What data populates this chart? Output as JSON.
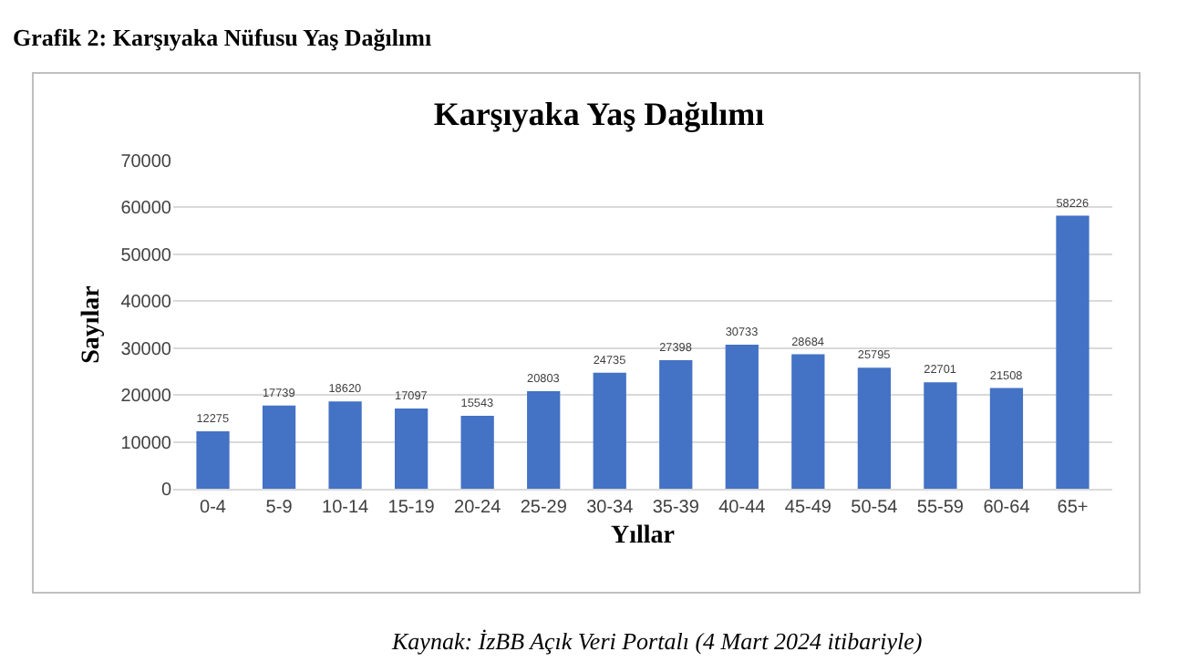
{
  "chart_data": {
    "type": "bar",
    "title": "Karşıyaka Yaş Dağılımı",
    "xlabel": "Yıllar",
    "ylabel": "Sayılar",
    "annotations": [
      "Grafik 2: Karşıyaka Nüfusu Yaş Dağılımı",
      "Kaynak: İzBB Açık Veri Portalı (4 Mart 2024 itibariyle)"
    ],
    "categories": [
      "0-4",
      "5-9",
      "10-14",
      "15-19",
      "20-24",
      "25-29",
      "30-34",
      "35-39",
      "40-44",
      "45-49",
      "50-54",
      "55-59",
      "60-64",
      "65+"
    ],
    "values": [
      12275,
      17739,
      18620,
      17097,
      15543,
      20803,
      24735,
      27398,
      30733,
      28684,
      25795,
      22701,
      21508,
      58226
    ],
    "color": "#4472c4",
    "ylim": [
      0,
      70000
    ],
    "yticks": [
      0,
      10000,
      20000,
      30000,
      40000,
      50000,
      60000,
      70000
    ],
    "grid": "y",
    "data_labels": true
  }
}
